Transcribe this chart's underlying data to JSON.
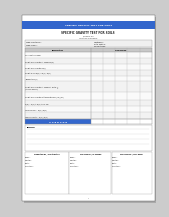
{
  "title": "SPECIFIC GRAVITY TEST FOR SOILS",
  "subtitle1": "Sample No.",
  "subtitle2": "Location of Sample",
  "header_left1": "Type of Material :",
  "header_left2": "Type of Soil :",
  "header_right1": "Tested By :",
  "header_right2": "Date Tested :",
  "header_right3": "Calculations :",
  "col_header": "Sample No.",
  "descriptions": [
    "Pycnometer Number",
    "Weight of Pycnometer + Sample W(p)",
    "Weight of Pycnometer W(c)",
    "Weight of Soil W(s) = W(p) - W(c)",
    "Temperature (C)",
    "Weight of Pycnometer + Sample + Water @\n(ASTM-D 854-02)",
    "Weight of Pycnometer at temperature of (Pw) (mc)",
    "W(p) = W(s) + W(c) + Pw - Pw",
    "Volume of Soil = W(s) / W(v)",
    "Specific Gravity = W(s) / W(v)"
  ],
  "average_label": "A V E R A G E",
  "remarks_label": "Remarks",
  "footer_col1_title": "Computed by / Construction",
  "footer_col2_title": "Checked by / In-Charge",
  "footer_col3_title": "Approved by / Lab. Head",
  "footer_fields": [
    "Name :",
    "Position :",
    "Date :",
    "Signature :"
  ],
  "bg_color": "#ffffff",
  "table_header_bg": "#c8c8c8",
  "avg_bg": "#3366cc",
  "avg_text_color": "#ffffff",
  "grid_color": "#888888",
  "top_bar_color": "#3366cc",
  "num_sample_cols": 5,
  "page_bg": "#cccccc"
}
